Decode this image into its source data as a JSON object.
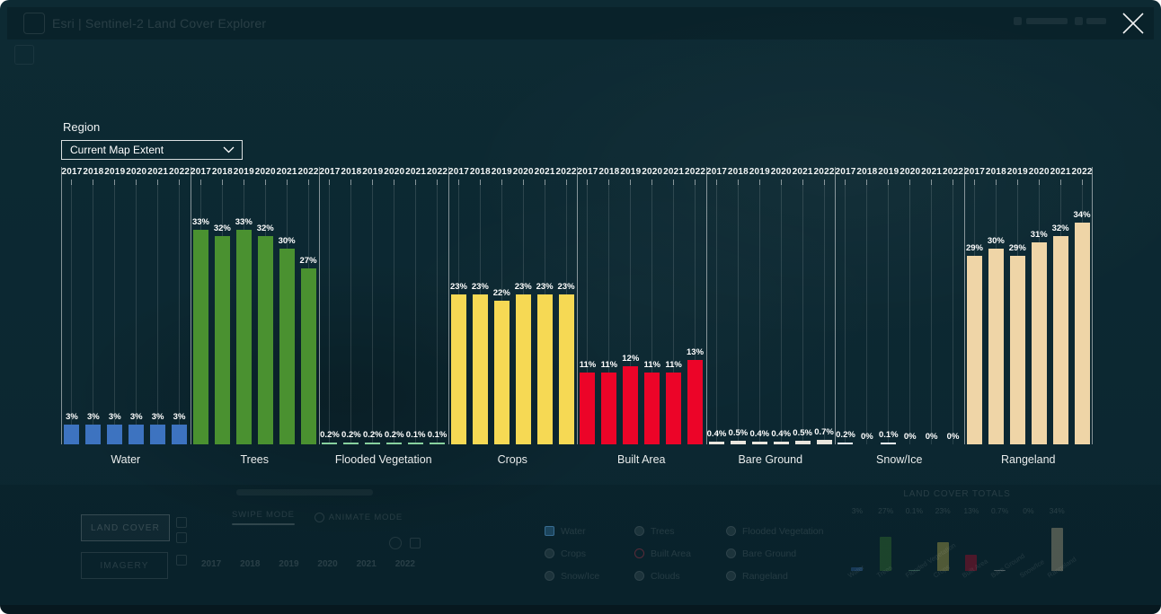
{
  "header": {
    "app_title": "Esri | Sentinel-2 Land Cover Explorer"
  },
  "overlay": {
    "close_icon": "close-x",
    "region_label": "Region",
    "region_value": "Current Map Extent"
  },
  "chart_data": [
    {
      "type": "bar",
      "title": "",
      "unit": "%",
      "years": [
        "2017",
        "2018",
        "2019",
        "2020",
        "2021",
        "2022"
      ],
      "ylim": [
        0,
        40
      ],
      "legend": "none",
      "grid": "vertical-per-year",
      "categories": [
        {
          "name": "Water",
          "color": "#3D73C0",
          "values": [
            3,
            3,
            3,
            3,
            3,
            3
          ],
          "labels": [
            "3%",
            "3%",
            "3%",
            "3%",
            "3%",
            "3%"
          ]
        },
        {
          "name": "Trees",
          "color": "#4A9130",
          "values": [
            33,
            32,
            33,
            32,
            30,
            27
          ],
          "labels": [
            "33%",
            "32%",
            "33%",
            "32%",
            "30%",
            "27%"
          ]
        },
        {
          "name": "Flooded Vegetation",
          "color": "#87D19E",
          "values": [
            0.2,
            0.2,
            0.2,
            0.2,
            0.1,
            0.1
          ],
          "labels": [
            "0.2%",
            "0.2%",
            "0.2%",
            "0.2%",
            "0.1%",
            "0.1%"
          ]
        },
        {
          "name": "Crops",
          "color": "#F6D954",
          "values": [
            23,
            23,
            22,
            23,
            23,
            23
          ],
          "labels": [
            "23%",
            "23%",
            "22%",
            "23%",
            "23%",
            "23%"
          ]
        },
        {
          "name": "Built Area",
          "color": "#EC0428",
          "values": [
            11,
            11,
            12,
            11,
            11,
            13
          ],
          "labels": [
            "11%",
            "11%",
            "12%",
            "11%",
            "11%",
            "13%"
          ]
        },
        {
          "name": "Bare Ground",
          "color": "#E9E5DD",
          "values": [
            0.4,
            0.5,
            0.4,
            0.4,
            0.5,
            0.7
          ],
          "labels": [
            "0.4%",
            "0.5%",
            "0.4%",
            "0.4%",
            "0.5%",
            "0.7%"
          ]
        },
        {
          "name": "Snow/Ice",
          "color": "#F2FAFF",
          "values": [
            0.2,
            0,
            0.1,
            0,
            0,
            0
          ],
          "labels": [
            "0.2%",
            "0%",
            "0.1%",
            "0%",
            "0%",
            "0%"
          ]
        },
        {
          "name": "Rangeland",
          "color": "#EFD5A7",
          "values": [
            29,
            30,
            29,
            31,
            32,
            34
          ],
          "labels": [
            "29%",
            "30%",
            "29%",
            "31%",
            "32%",
            "34%"
          ]
        }
      ]
    },
    {
      "type": "bar",
      "title": "LAND COVER TOTALS",
      "categories": [
        "Water",
        "Trees",
        "Flooded Vegetation",
        "Crops",
        "Built Area",
        "Bare Ground",
        "Snow/Ice",
        "Rangeland"
      ],
      "values": [
        3,
        27,
        0.1,
        23,
        13,
        0.7,
        0,
        34
      ],
      "labels": [
        "3%",
        "27%",
        "0.1%",
        "23%",
        "13%",
        "0.7%",
        "0%",
        "34%"
      ],
      "colors": [
        "#3D73C0",
        "#4A9130",
        "#87D19E",
        "#F6D954",
        "#EC0428",
        "#E9E5DD",
        "#F2FAFF",
        "#EFD5A7"
      ]
    }
  ],
  "background": {
    "buttons": [
      {
        "label": "LAND COVER"
      },
      {
        "label": "IMAGERY"
      }
    ],
    "modes": [
      {
        "label": "SWIPE MODE",
        "active": true,
        "icon": ""
      },
      {
        "label": "ANIMATE MODE",
        "active": false,
        "icon": "play-icon"
      }
    ],
    "timeline_years": [
      "2017",
      "2018",
      "2019",
      "2020",
      "2021",
      "2022"
    ],
    "layer_options": [
      {
        "label": "Water",
        "state": "selected"
      },
      {
        "label": "Trees",
        "state": "default"
      },
      {
        "label": "Flooded Vegetation",
        "state": "default"
      },
      {
        "label": "Crops",
        "state": "default"
      },
      {
        "label": "Built Area",
        "state": "outlined"
      },
      {
        "label": "Bare Ground",
        "state": "default"
      },
      {
        "label": "Snow/Ice",
        "state": "default"
      },
      {
        "label": "Clouds",
        "state": "default"
      },
      {
        "label": "Rangeland",
        "state": "default"
      }
    ]
  }
}
